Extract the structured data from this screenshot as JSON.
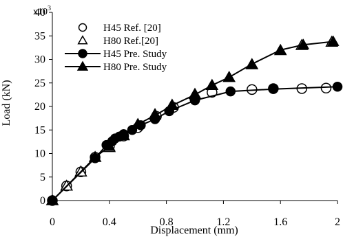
{
  "chart_data": {
    "type": "scatter",
    "title": "",
    "xlabel": "Displacement (mm)",
    "ylabel": "Load (kN)",
    "y_multiplier_label": "x10",
    "y_multiplier_exp": "3",
    "xlim": [
      0,
      2
    ],
    "ylim": [
      0,
      40
    ],
    "x_ticks": [
      0,
      0.4,
      0.8,
      1.2,
      1.6,
      2
    ],
    "x_tick_labels": [
      "0",
      "0.4",
      "0.8",
      "1.2",
      "1.6",
      "2"
    ],
    "y_ticks": [
      0,
      5,
      10,
      15,
      20,
      25,
      30,
      35,
      40
    ],
    "y_tick_labels": [
      "0",
      "5",
      "10",
      "15",
      "20",
      "25",
      "30",
      "35",
      "40"
    ],
    "grid": false,
    "legend_position": "top-left",
    "series": [
      {
        "name": "H45 Ref. [20]",
        "style": "markers",
        "marker": "circle-open",
        "x": [
          0,
          0.1,
          0.2,
          0.3,
          0.4,
          0.5,
          0.6,
          0.73,
          0.85,
          1.0,
          1.12,
          1.4,
          1.55,
          1.75,
          1.92
        ],
        "y": [
          0,
          3.1,
          6.1,
          9.2,
          11.5,
          13.7,
          15.5,
          17.9,
          19.8,
          21.6,
          23.0,
          23.6,
          23.8,
          23.8,
          23.9
        ]
      },
      {
        "name": "H80 Ref.[20]",
        "style": "markers",
        "marker": "triangle-open",
        "x": [
          0,
          0.1,
          0.2,
          0.3,
          0.4,
          0.5,
          0.6,
          0.72,
          0.84,
          1.0,
          1.12,
          1.24,
          1.4,
          1.6,
          1.75,
          1.96
        ],
        "y": [
          0,
          3.1,
          6.1,
          9.2,
          11.3,
          13.8,
          16.2,
          18.3,
          20.3,
          22.6,
          24.5,
          26.2,
          28.9,
          31.9,
          33.0,
          33.7
        ]
      },
      {
        "name": "H45 Pre. Study",
        "style": "line-markers",
        "marker": "circle-filled",
        "x": [
          0,
          0.3,
          0.38,
          0.42,
          0.44,
          0.47,
          0.5,
          0.56,
          0.62,
          0.72,
          0.82,
          1.0,
          1.25,
          1.55,
          2.0
        ],
        "y": [
          0,
          9.0,
          11.8,
          12.6,
          13.2,
          13.6,
          14.1,
          15.0,
          16.0,
          17.3,
          19.0,
          21.3,
          23.2,
          23.7,
          24.2
        ]
      },
      {
        "name": "H80 Pre. Study",
        "style": "line-markers",
        "marker": "triangle-filled",
        "x": [
          0,
          0.3,
          0.4,
          0.5,
          0.6,
          0.72,
          0.84,
          1.0,
          1.12,
          1.24,
          1.4,
          1.6,
          1.76,
          1.97
        ],
        "y": [
          0,
          9.2,
          11.5,
          13.8,
          16.2,
          18.1,
          20.2,
          22.5,
          24.5,
          26.2,
          29.0,
          32.0,
          33.1,
          33.8
        ]
      }
    ]
  }
}
